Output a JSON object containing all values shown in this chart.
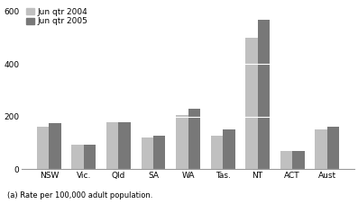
{
  "categories": [
    "NSW",
    "Vic.",
    "Qld",
    "SA",
    "WA",
    "Tas.",
    "NT",
    "ACT",
    "Aust"
  ],
  "jun2004": [
    163,
    93,
    180,
    120,
    208,
    128,
    500,
    70,
    152
  ],
  "jun2005": [
    175,
    93,
    178,
    127,
    232,
    152,
    570,
    68,
    163
  ],
  "color_2004": "#c0c0c0",
  "color_2005": "#787878",
  "legend_2004": "Jun qtr 2004",
  "legend_2005": "Jun qtr 2005",
  "ylim": [
    0,
    630
  ],
  "yticks": [
    0,
    200,
    400,
    600
  ],
  "footnote": "(a) Rate per 100,000 adult population.",
  "bar_width": 0.35
}
